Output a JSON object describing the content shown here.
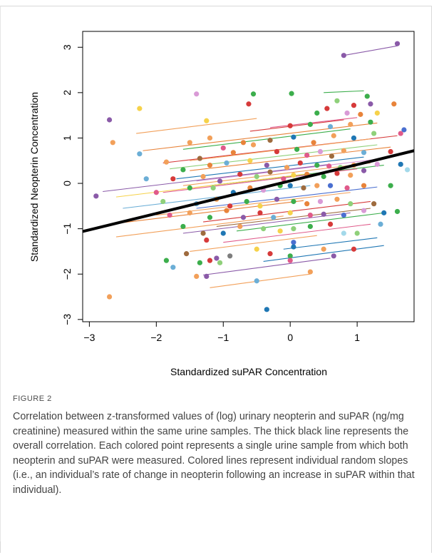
{
  "figure": {
    "label": "FIGURE 2",
    "caption": "Correlation between z-transformed values of (log) urinary neopterin and suPAR (ng/mg creatinine) measured within the same urine samples. The thick black line represents the overall correlation. Each colored point represents a single urine sample from which both neopterin and suPAR were measured. Colored lines represent individual random slopes (i.e., an individual’s rate of change in neopterin following an increase in suPAR within that individual)."
  },
  "chart_data": {
    "type": "scatter",
    "xlabel": "Standardized suPAR Concentration",
    "ylabel": "Standardized Neopterin Concentration",
    "xlim": [
      -3.1,
      1.85
    ],
    "ylim": [
      -3.05,
      3.35
    ],
    "xticks": [
      -3,
      -2,
      -1,
      0,
      1
    ],
    "yticks": [
      -3,
      -2,
      -1,
      0,
      1,
      2,
      3
    ],
    "grid": false,
    "legend": "none",
    "overall_fit": {
      "x": [
        -3.1,
        1.85
      ],
      "y": [
        -1.06,
        0.72
      ],
      "color": "#000000"
    },
    "palette": [
      "#8a5aa8",
      "#e8833a",
      "#3cae4c",
      "#d63a3a",
      "#1f77b4",
      "#f2a05a",
      "#8fd07a",
      "#e05a8a",
      "#6baed6",
      "#c8b400",
      "#9e6b3e",
      "#d99ad6",
      "#7d7d7d",
      "#f6d24a",
      "#4a6fd0",
      "#a3d9ea"
    ],
    "random_slopes": [
      {
        "x": [
          0.8,
          1.6
        ],
        "y": [
          2.82,
          3.03
        ],
        "color": "#8a5aa8"
      },
      {
        "x": [
          0.5,
          1.1
        ],
        "y": [
          2.0,
          2.04
        ],
        "color": "#3cae4c"
      },
      {
        "x": [
          -2.3,
          -0.5
        ],
        "y": [
          1.1,
          1.43
        ],
        "color": "#f2a05a"
      },
      {
        "x": [
          -0.6,
          0.8
        ],
        "y": [
          1.15,
          1.4
        ],
        "color": "#d63a3a"
      },
      {
        "x": [
          -0.3,
          1.0
        ],
        "y": [
          1.23,
          1.45
        ],
        "color": "#e05a8a"
      },
      {
        "x": [
          -2.2,
          1.3
        ],
        "y": [
          0.72,
          1.33
        ],
        "color": "#e8833a"
      },
      {
        "x": [
          -1.6,
          0.9
        ],
        "y": [
          0.75,
          1.2
        ],
        "color": "#3cae4c"
      },
      {
        "x": [
          -1.9,
          1.6
        ],
        "y": [
          0.45,
          1.05
        ],
        "color": "#d63a3a"
      },
      {
        "x": [
          -1.5,
          1.2
        ],
        "y": [
          0.5,
          0.98
        ],
        "color": "#f2a05a"
      },
      {
        "x": [
          -1.8,
          1.3
        ],
        "y": [
          0.32,
          0.85
        ],
        "color": "#8fd07a"
      },
      {
        "x": [
          -1.5,
          1.5
        ],
        "y": [
          0.28,
          0.8
        ],
        "color": "#e8833a"
      },
      {
        "x": [
          -1.7,
          1.1
        ],
        "y": [
          0.1,
          0.58
        ],
        "color": "#1f77b4"
      },
      {
        "x": [
          -1.4,
          1.4
        ],
        "y": [
          0.05,
          0.55
        ],
        "color": "#d99ad6"
      },
      {
        "x": [
          -1.6,
          1.2
        ],
        "y": [
          -0.05,
          0.45
        ],
        "color": "#f2a05a"
      },
      {
        "x": [
          -2.8,
          0.6
        ],
        "y": [
          -0.18,
          0.42
        ],
        "color": "#8a5aa8"
      },
      {
        "x": [
          -1.2,
          1.4
        ],
        "y": [
          -0.05,
          0.4
        ],
        "color": "#3cae4c"
      },
      {
        "x": [
          -2.6,
          0.2
        ],
        "y": [
          -0.3,
          0.2
        ],
        "color": "#f6d24a"
      },
      {
        "x": [
          -1.9,
          1.0
        ],
        "y": [
          -0.2,
          0.32
        ],
        "color": "#e05a8a"
      },
      {
        "x": [
          -2.5,
          0.3
        ],
        "y": [
          -0.55,
          -0.05
        ],
        "color": "#6baed6"
      },
      {
        "x": [
          -1.4,
          1.3
        ],
        "y": [
          -0.55,
          -0.08
        ],
        "color": "#4a6fd0"
      },
      {
        "x": [
          -2.0,
          0.9
        ],
        "y": [
          -0.7,
          -0.2
        ],
        "color": "#f2a05a"
      },
      {
        "x": [
          -2.7,
          0.2
        ],
        "y": [
          -0.9,
          -0.38
        ],
        "color": "#e8833a"
      },
      {
        "x": [
          -1.3,
          1.2
        ],
        "y": [
          -0.85,
          -0.4
        ],
        "color": "#d63a3a"
      },
      {
        "x": [
          -2.6,
          -0.1
        ],
        "y": [
          -1.18,
          -0.72
        ],
        "color": "#f2a05a"
      },
      {
        "x": [
          -1.6,
          0.9
        ],
        "y": [
          -1.1,
          -0.65
        ],
        "color": "#8a5aa8"
      },
      {
        "x": [
          -1.1,
          1.2
        ],
        "y": [
          -0.95,
          -0.55
        ],
        "color": "#9e6b3e"
      },
      {
        "x": [
          -0.8,
          1.4
        ],
        "y": [
          -1.05,
          -0.65
        ],
        "color": "#3cae4c"
      },
      {
        "x": [
          -1.0,
          1.2
        ],
        "y": [
          -1.3,
          -0.9
        ],
        "color": "#e05a8a"
      },
      {
        "x": [
          -0.1,
          1.3
        ],
        "y": [
          -1.45,
          -1.2
        ],
        "color": "#1f77b4"
      },
      {
        "x": [
          -1.5,
          0.4
        ],
        "y": [
          -1.5,
          -1.15
        ],
        "color": "#f2a05a"
      },
      {
        "x": [
          -0.4,
          1.4
        ],
        "y": [
          -1.72,
          -1.37
        ],
        "color": "#1f77b4"
      },
      {
        "x": [
          -1.3,
          0.6
        ],
        "y": [
          -2.02,
          -1.65
        ],
        "color": "#8a5aa8"
      },
      {
        "x": [
          -1.2,
          0.3
        ],
        "y": [
          -2.3,
          -2.0
        ],
        "color": "#f2a05a"
      }
    ],
    "points": [
      {
        "x": 1.6,
        "y": 3.08,
        "color": "#8a5aa8"
      },
      {
        "x": 0.8,
        "y": 2.82,
        "color": "#8a5aa8"
      },
      {
        "x": -1.4,
        "y": 1.97,
        "color": "#d99ad6"
      },
      {
        "x": -0.55,
        "y": 1.97,
        "color": "#3cae4c"
      },
      {
        "x": 0.02,
        "y": 1.98,
        "color": "#3cae4c"
      },
      {
        "x": -0.62,
        "y": 1.75,
        "color": "#d63a3a"
      },
      {
        "x": 1.15,
        "y": 1.92,
        "color": "#3cae4c"
      },
      {
        "x": 0.7,
        "y": 1.82,
        "color": "#8fd07a"
      },
      {
        "x": 0.95,
        "y": 1.72,
        "color": "#d63a3a"
      },
      {
        "x": 1.2,
        "y": 1.75,
        "color": "#8a5aa8"
      },
      {
        "x": 1.55,
        "y": 1.75,
        "color": "#e8833a"
      },
      {
        "x": -2.25,
        "y": 1.65,
        "color": "#f6d24a"
      },
      {
        "x": 0.4,
        "y": 1.55,
        "color": "#3cae4c"
      },
      {
        "x": 0.55,
        "y": 1.65,
        "color": "#d63a3a"
      },
      {
        "x": 0.85,
        "y": 1.55,
        "color": "#d99ad6"
      },
      {
        "x": 1.05,
        "y": 1.52,
        "color": "#e8833a"
      },
      {
        "x": 1.3,
        "y": 1.55,
        "color": "#f6d24a"
      },
      {
        "x": -2.7,
        "y": 1.4,
        "color": "#8a5aa8"
      },
      {
        "x": -1.25,
        "y": 1.38,
        "color": "#f6d24a"
      },
      {
        "x": 0.0,
        "y": 1.27,
        "color": "#d63a3a"
      },
      {
        "x": 0.3,
        "y": 1.3,
        "color": "#3cae4c"
      },
      {
        "x": 0.6,
        "y": 1.25,
        "color": "#6baed6"
      },
      {
        "x": 0.9,
        "y": 1.3,
        "color": "#f2a05a"
      },
      {
        "x": 1.2,
        "y": 1.35,
        "color": "#3cae4c"
      },
      {
        "x": -2.65,
        "y": 0.9,
        "color": "#f2a05a"
      },
      {
        "x": -1.5,
        "y": 0.9,
        "color": "#f2a05a"
      },
      {
        "x": -1.2,
        "y": 1.0,
        "color": "#f2a05a"
      },
      {
        "x": -0.7,
        "y": 0.9,
        "color": "#e8833a"
      },
      {
        "x": -0.3,
        "y": 0.95,
        "color": "#9e6b3e"
      },
      {
        "x": 0.05,
        "y": 1.02,
        "color": "#1f77b4"
      },
      {
        "x": 0.35,
        "y": 0.9,
        "color": "#e8833a"
      },
      {
        "x": 0.65,
        "y": 1.05,
        "color": "#f2a05a"
      },
      {
        "x": 0.95,
        "y": 1.0,
        "color": "#1f77b4"
      },
      {
        "x": 1.25,
        "y": 1.1,
        "color": "#8fd07a"
      },
      {
        "x": 1.65,
        "y": 1.1,
        "color": "#e05a8a"
      },
      {
        "x": 1.7,
        "y": 1.18,
        "color": "#4a6fd0"
      },
      {
        "x": -2.25,
        "y": 0.65,
        "color": "#6baed6"
      },
      {
        "x": -1.85,
        "y": 0.47,
        "color": "#f2a05a"
      },
      {
        "x": -1.35,
        "y": 0.55,
        "color": "#9e6b3e"
      },
      {
        "x": -1.0,
        "y": 0.78,
        "color": "#e05a8a"
      },
      {
        "x": -0.85,
        "y": 0.68,
        "color": "#e8833a"
      },
      {
        "x": -0.55,
        "y": 0.85,
        "color": "#f2a05a"
      },
      {
        "x": -0.2,
        "y": 0.7,
        "color": "#d63a3a"
      },
      {
        "x": 0.1,
        "y": 0.75,
        "color": "#3cae4c"
      },
      {
        "x": 0.25,
        "y": 0.62,
        "color": "#e05a8a"
      },
      {
        "x": 0.45,
        "y": 0.7,
        "color": "#d99ad6"
      },
      {
        "x": 0.62,
        "y": 0.6,
        "color": "#9e6b3e"
      },
      {
        "x": 0.8,
        "y": 0.72,
        "color": "#f2a05a"
      },
      {
        "x": 1.1,
        "y": 0.68,
        "color": "#6baed6"
      },
      {
        "x": 1.5,
        "y": 0.7,
        "color": "#d63a3a"
      },
      {
        "x": -1.6,
        "y": 0.3,
        "color": "#3cae4c"
      },
      {
        "x": -1.2,
        "y": 0.4,
        "color": "#e8833a"
      },
      {
        "x": -0.95,
        "y": 0.45,
        "color": "#6baed6"
      },
      {
        "x": -0.6,
        "y": 0.5,
        "color": "#f6d24a"
      },
      {
        "x": -0.35,
        "y": 0.4,
        "color": "#8a5aa8"
      },
      {
        "x": -0.05,
        "y": 0.35,
        "color": "#f2a05a"
      },
      {
        "x": 0.15,
        "y": 0.45,
        "color": "#d63a3a"
      },
      {
        "x": 0.4,
        "y": 0.4,
        "color": "#3cae4c"
      },
      {
        "x": 0.58,
        "y": 0.38,
        "color": "#e05a8a"
      },
      {
        "x": 0.75,
        "y": 0.35,
        "color": "#8fd07a"
      },
      {
        "x": 0.95,
        "y": 0.4,
        "color": "#f2a05a"
      },
      {
        "x": 1.3,
        "y": 0.42,
        "color": "#d99ad6"
      },
      {
        "x": 1.65,
        "y": 0.42,
        "color": "#1f77b4"
      },
      {
        "x": -2.15,
        "y": 0.1,
        "color": "#6baed6"
      },
      {
        "x": -1.75,
        "y": 0.1,
        "color": "#d63a3a"
      },
      {
        "x": -1.3,
        "y": 0.15,
        "color": "#f2a05a"
      },
      {
        "x": -1.05,
        "y": 0.05,
        "color": "#8a5aa8"
      },
      {
        "x": -0.75,
        "y": 0.2,
        "color": "#d63a3a"
      },
      {
        "x": -0.5,
        "y": 0.15,
        "color": "#8fd07a"
      },
      {
        "x": -0.3,
        "y": 0.25,
        "color": "#9e6b3e"
      },
      {
        "x": -0.1,
        "y": 0.1,
        "color": "#e05a8a"
      },
      {
        "x": 0.05,
        "y": 0.18,
        "color": "#f6d24a"
      },
      {
        "x": 0.25,
        "y": 0.2,
        "color": "#e8833a"
      },
      {
        "x": 0.5,
        "y": 0.15,
        "color": "#3cae4c"
      },
      {
        "x": 0.7,
        "y": 0.22,
        "color": "#d63a3a"
      },
      {
        "x": 0.9,
        "y": 0.18,
        "color": "#f2a05a"
      },
      {
        "x": 1.1,
        "y": 0.28,
        "color": "#8a5aa8"
      },
      {
        "x": 1.75,
        "y": 0.3,
        "color": "#a3d9ea"
      },
      {
        "x": -2.9,
        "y": -0.28,
        "color": "#8a5aa8"
      },
      {
        "x": -2.0,
        "y": -0.2,
        "color": "#e05a8a"
      },
      {
        "x": -1.5,
        "y": -0.1,
        "color": "#3cae4c"
      },
      {
        "x": -1.15,
        "y": -0.1,
        "color": "#8fd07a"
      },
      {
        "x": -0.85,
        "y": -0.2,
        "color": "#1f77b4"
      },
      {
        "x": -0.6,
        "y": -0.1,
        "color": "#e8833a"
      },
      {
        "x": -0.4,
        "y": -0.15,
        "color": "#d99ad6"
      },
      {
        "x": -0.15,
        "y": -0.05,
        "color": "#3cae4c"
      },
      {
        "x": 0.0,
        "y": -0.05,
        "color": "#1f77b4"
      },
      {
        "x": 0.2,
        "y": -0.1,
        "color": "#9e6b3e"
      },
      {
        "x": 0.4,
        "y": -0.05,
        "color": "#f2a05a"
      },
      {
        "x": 0.6,
        "y": -0.05,
        "color": "#4a6fd0"
      },
      {
        "x": 0.85,
        "y": -0.1,
        "color": "#e05a8a"
      },
      {
        "x": 1.1,
        "y": -0.05,
        "color": "#e8833a"
      },
      {
        "x": 1.5,
        "y": -0.05,
        "color": "#3cae4c"
      },
      {
        "x": -1.9,
        "y": -0.4,
        "color": "#8fd07a"
      },
      {
        "x": -1.4,
        "y": -0.45,
        "color": "#6baed6"
      },
      {
        "x": -1.1,
        "y": -0.35,
        "color": "#f2a05a"
      },
      {
        "x": -0.9,
        "y": -0.5,
        "color": "#d63a3a"
      },
      {
        "x": -0.65,
        "y": -0.4,
        "color": "#3cae4c"
      },
      {
        "x": -0.45,
        "y": -0.5,
        "color": "#f6d24a"
      },
      {
        "x": -0.2,
        "y": -0.35,
        "color": "#8a5aa8"
      },
      {
        "x": 0.05,
        "y": -0.4,
        "color": "#3cae4c"
      },
      {
        "x": 0.25,
        "y": -0.45,
        "color": "#e8833a"
      },
      {
        "x": 0.45,
        "y": -0.4,
        "color": "#d99ad6"
      },
      {
        "x": 0.7,
        "y": -0.35,
        "color": "#f2a05a"
      },
      {
        "x": 0.9,
        "y": -0.45,
        "color": "#8fd07a"
      },
      {
        "x": 1.25,
        "y": -0.45,
        "color": "#9e6b3e"
      },
      {
        "x": -1.8,
        "y": -0.7,
        "color": "#e05a8a"
      },
      {
        "x": -1.5,
        "y": -0.65,
        "color": "#f2a05a"
      },
      {
        "x": -1.2,
        "y": -0.75,
        "color": "#3cae4c"
      },
      {
        "x": -0.95,
        "y": -0.6,
        "color": "#e8833a"
      },
      {
        "x": -0.7,
        "y": -0.75,
        "color": "#8a5aa8"
      },
      {
        "x": -0.45,
        "y": -0.65,
        "color": "#d63a3a"
      },
      {
        "x": -0.25,
        "y": -0.75,
        "color": "#6baed6"
      },
      {
        "x": 0.0,
        "y": -0.65,
        "color": "#f6d24a"
      },
      {
        "x": 0.3,
        "y": -0.7,
        "color": "#e05a8a"
      },
      {
        "x": 0.5,
        "y": -0.68,
        "color": "#8a5aa8"
      },
      {
        "x": 0.8,
        "y": -0.7,
        "color": "#4a6fd0"
      },
      {
        "x": 1.1,
        "y": -0.6,
        "color": "#d99ad6"
      },
      {
        "x": 1.4,
        "y": -0.65,
        "color": "#1f77b4"
      },
      {
        "x": 1.6,
        "y": -0.62,
        "color": "#3cae4c"
      },
      {
        "x": -1.6,
        "y": -0.95,
        "color": "#3cae4c"
      },
      {
        "x": -1.3,
        "y": -1.1,
        "color": "#9e6b3e"
      },
      {
        "x": -1.0,
        "y": -1.1,
        "color": "#1f77b4"
      },
      {
        "x": -0.75,
        "y": -0.95,
        "color": "#f2a05a"
      },
      {
        "x": -0.4,
        "y": -1.0,
        "color": "#8fd07a"
      },
      {
        "x": -0.15,
        "y": -1.05,
        "color": "#f6d24a"
      },
      {
        "x": 0.05,
        "y": -1.0,
        "color": "#8fd07a"
      },
      {
        "x": 0.3,
        "y": -0.95,
        "color": "#3cae4c"
      },
      {
        "x": 0.6,
        "y": -0.9,
        "color": "#d63a3a"
      },
      {
        "x": 0.8,
        "y": -1.1,
        "color": "#a3d9ea"
      },
      {
        "x": 1.0,
        "y": -1.1,
        "color": "#8fd07a"
      },
      {
        "x": 1.35,
        "y": -0.9,
        "color": "#6baed6"
      },
      {
        "x": -1.55,
        "y": -1.55,
        "color": "#9e6b3e"
      },
      {
        "x": -1.25,
        "y": -1.25,
        "color": "#d63a3a"
      },
      {
        "x": -1.1,
        "y": -1.65,
        "color": "#8a5aa8"
      },
      {
        "x": -1.35,
        "y": -1.75,
        "color": "#3cae4c"
      },
      {
        "x": -1.2,
        "y": -1.7,
        "color": "#d63a3a"
      },
      {
        "x": -1.05,
        "y": -1.75,
        "color": "#8fd07a"
      },
      {
        "x": -0.9,
        "y": -1.6,
        "color": "#7d7d7d"
      },
      {
        "x": -0.5,
        "y": -1.45,
        "color": "#f6d24a"
      },
      {
        "x": -0.3,
        "y": -1.55,
        "color": "#d63a3a"
      },
      {
        "x": 0.05,
        "y": -1.3,
        "color": "#4a6fd0"
      },
      {
        "x": 0.05,
        "y": -1.4,
        "color": "#1f77b4"
      },
      {
        "x": 0.5,
        "y": -1.45,
        "color": "#f2a05a"
      },
      {
        "x": 0.95,
        "y": -1.45,
        "color": "#d63a3a"
      },
      {
        "x": -1.85,
        "y": -1.7,
        "color": "#3cae4c"
      },
      {
        "x": -1.75,
        "y": -1.85,
        "color": "#6baed6"
      },
      {
        "x": -1.4,
        "y": -2.05,
        "color": "#f2a05a"
      },
      {
        "x": -1.25,
        "y": -2.05,
        "color": "#8a5aa8"
      },
      {
        "x": 0.0,
        "y": -1.6,
        "color": "#3cae4c"
      },
      {
        "x": 0.0,
        "y": -1.7,
        "color": "#e05a8a"
      },
      {
        "x": 0.3,
        "y": -1.95,
        "color": "#f2a05a"
      },
      {
        "x": 0.65,
        "y": -1.6,
        "color": "#8a5aa8"
      },
      {
        "x": -0.5,
        "y": -2.15,
        "color": "#6baed6"
      },
      {
        "x": -0.35,
        "y": -2.78,
        "color": "#1f77b4"
      },
      {
        "x": -2.7,
        "y": -2.5,
        "color": "#f2a05a"
      }
    ]
  }
}
